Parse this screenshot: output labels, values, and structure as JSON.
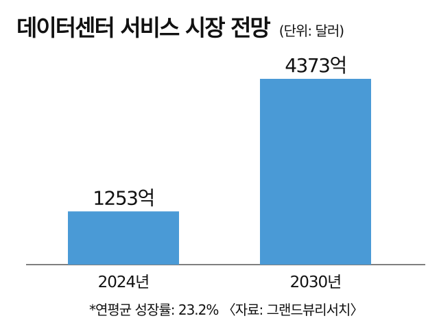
{
  "title": "데이터센터 서비스 시장 전망",
  "unit_note": "(단위: 달러)",
  "footnote": "*연평균 성장률: 23.2% 〈자료: 그랜드뷰리서치〉",
  "colors": {
    "bar": "#4a9ad6",
    "axis": "#555555",
    "text": "#111111"
  },
  "chart_data": {
    "type": "bar",
    "title": "데이터센터 서비스 시장 전망",
    "categories": [
      "2024년",
      "2030년"
    ],
    "values": [
      1253,
      4373
    ],
    "data_labels": [
      "1253억",
      "4373억"
    ],
    "xlabel": "",
    "ylabel": "",
    "ylim": [
      0,
      5000
    ],
    "grid": false
  }
}
